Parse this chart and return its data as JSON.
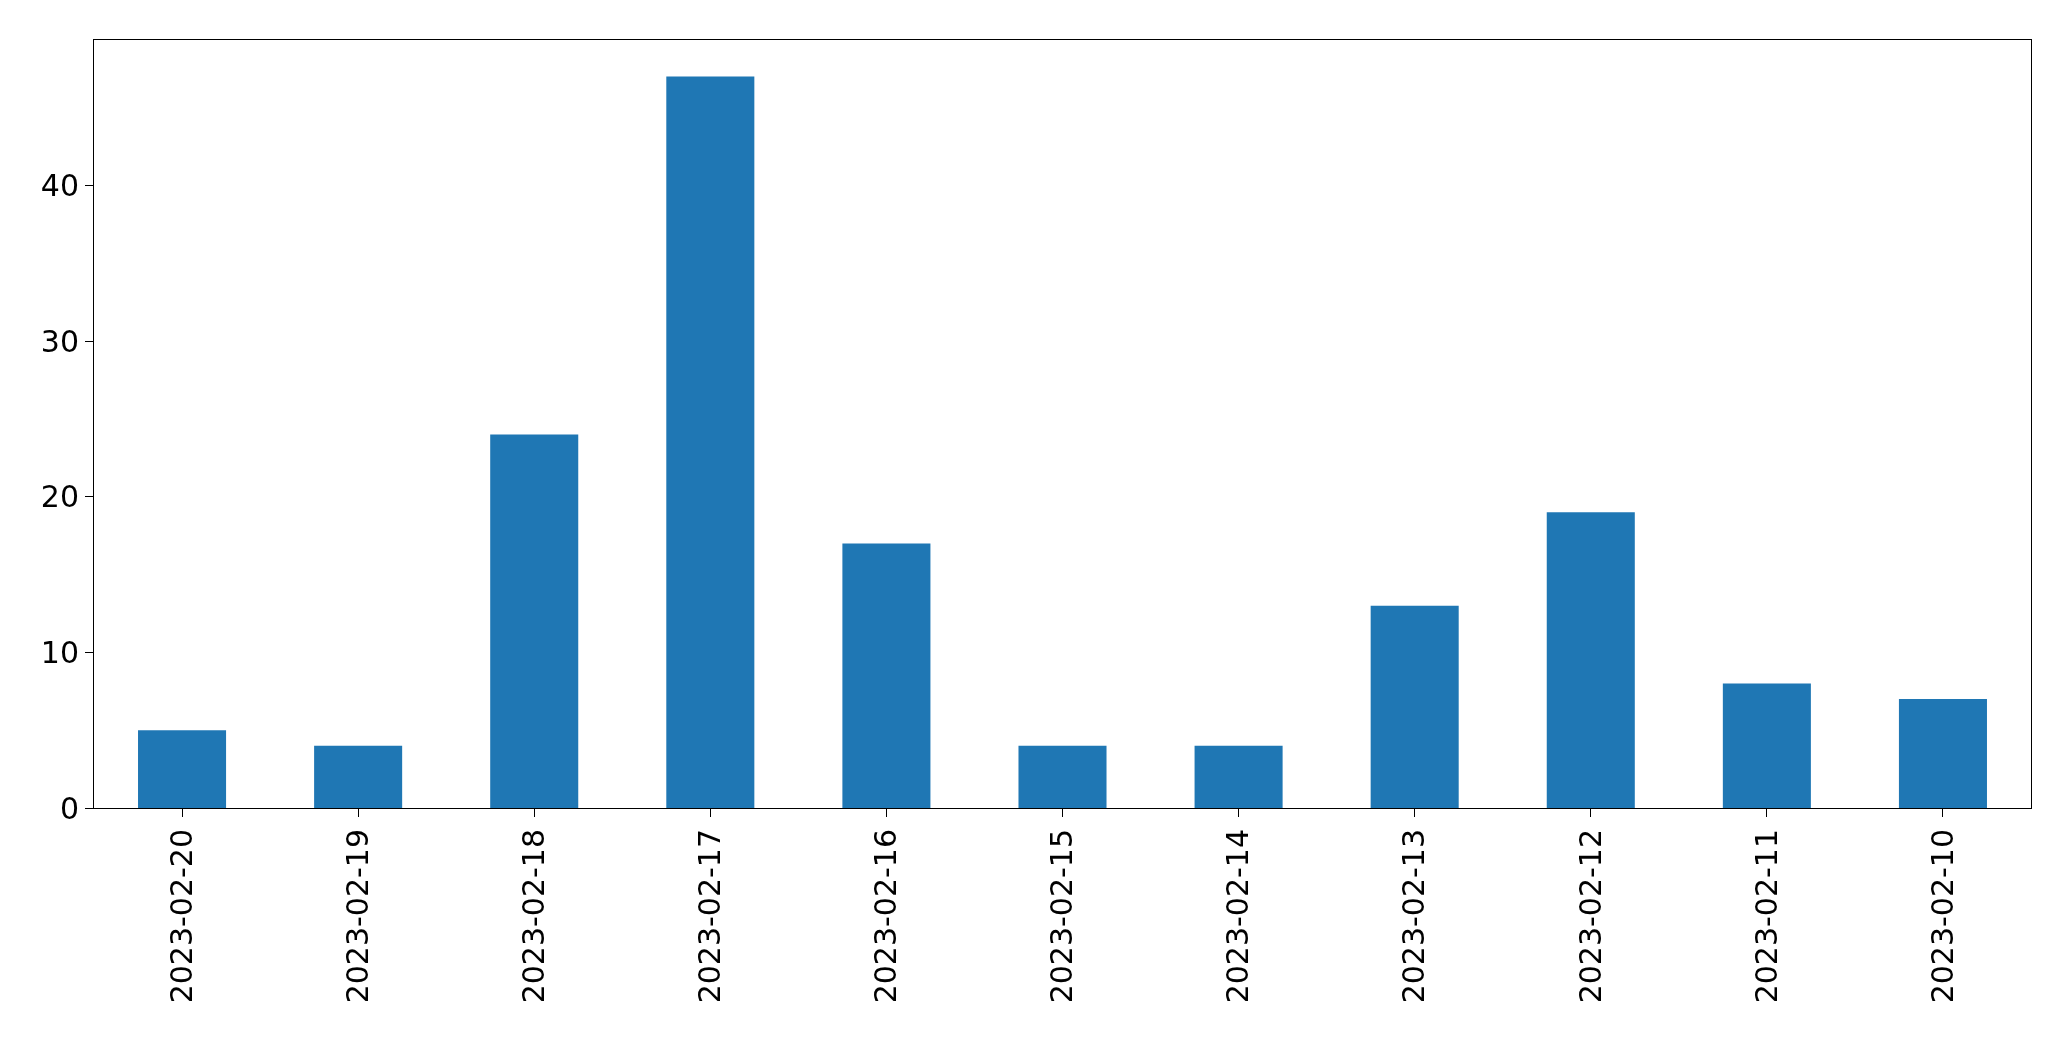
{
  "chart_data": {
    "type": "bar",
    "categories": [
      "2023-02-20",
      "2023-02-19",
      "2023-02-18",
      "2023-02-17",
      "2023-02-16",
      "2023-02-15",
      "2023-02-14",
      "2023-02-13",
      "2023-02-12",
      "2023-02-11",
      "2023-02-10"
    ],
    "values": [
      5,
      4,
      24,
      47,
      17,
      4,
      4,
      13,
      19,
      8,
      7
    ],
    "color": "#1f77b4",
    "ylim": [
      0,
      49.35
    ],
    "yticks": [
      0,
      10,
      20,
      30,
      40
    ],
    "grid": false,
    "legend": false
  }
}
